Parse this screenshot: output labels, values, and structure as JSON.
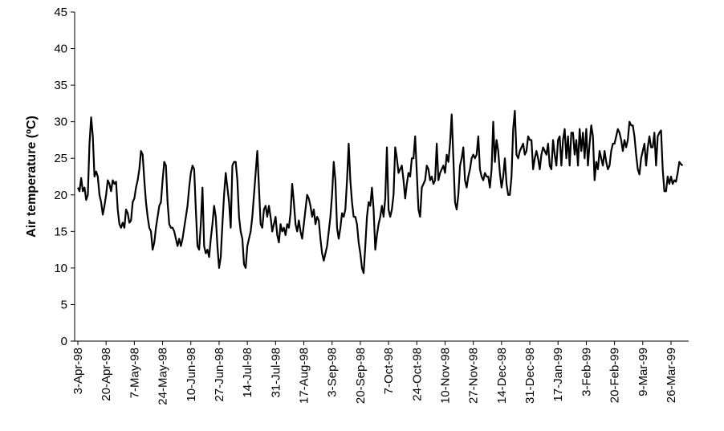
{
  "chart_data": {
    "type": "line",
    "y_label": "Air temperature (ºC)",
    "color": "#000000",
    "ylim": [
      0,
      45
    ],
    "yticks": [
      0,
      5,
      10,
      15,
      20,
      25,
      30,
      35,
      40,
      45
    ],
    "categories": [
      "3-Apr-98",
      null,
      null,
      null,
      null,
      null,
      null,
      null,
      null,
      null,
      null,
      null,
      null,
      null,
      null,
      null,
      null,
      "20-Apr-98",
      null,
      null,
      null,
      null,
      null,
      null,
      null,
      null,
      null,
      null,
      null,
      null,
      null,
      null,
      null,
      null,
      "7-May-98",
      null,
      null,
      null,
      null,
      null,
      null,
      null,
      null,
      null,
      null,
      null,
      null,
      null,
      null,
      null,
      null,
      "24-May-98",
      null,
      null,
      null,
      null,
      null,
      null,
      null,
      null,
      null,
      null,
      null,
      null,
      null,
      null,
      null,
      null,
      "10-Jun-98",
      null,
      null,
      null,
      null,
      null,
      null,
      null,
      null,
      null,
      null,
      null,
      null,
      null,
      null,
      null,
      null,
      "27-Jun-98",
      null,
      null,
      null,
      null,
      null,
      null,
      null,
      null,
      null,
      null,
      null,
      null,
      null,
      null,
      null,
      null,
      "14-Jul-98",
      null,
      null,
      null,
      null,
      null,
      null,
      null,
      null,
      null,
      null,
      null,
      null,
      null,
      null,
      null,
      null,
      "31-Jul-98",
      null,
      null,
      null,
      null,
      null,
      null,
      null,
      null,
      null,
      null,
      null,
      null,
      null,
      null,
      null,
      null,
      "17-Aug-98",
      null,
      null,
      null,
      null,
      null,
      null,
      null,
      null,
      null,
      null,
      null,
      null,
      null,
      null,
      null,
      null,
      "3-Sep-98",
      null,
      null,
      null,
      null,
      null,
      null,
      null,
      null,
      null,
      null,
      null,
      null,
      null,
      null,
      null,
      null,
      "20-Sep-98",
      null,
      null,
      null,
      null,
      null,
      null,
      null,
      null,
      null,
      null,
      null,
      null,
      null,
      null,
      null,
      null,
      "7-Oct-98",
      null,
      null,
      null,
      null,
      null,
      null,
      null,
      null,
      null,
      null,
      null,
      null,
      null,
      null,
      null,
      null,
      "24-Oct-98",
      null,
      null,
      null,
      null,
      null,
      null,
      null,
      null,
      null,
      null,
      null,
      null,
      null,
      null,
      null,
      null,
      "10-Nov-98",
      null,
      null,
      null,
      null,
      null,
      null,
      null,
      null,
      null,
      null,
      null,
      null,
      null,
      null,
      null,
      null,
      "27-Nov-98",
      null,
      null,
      null,
      null,
      null,
      null,
      null,
      null,
      null,
      null,
      null,
      null,
      null,
      null,
      null,
      null,
      "14-Dec-98",
      null,
      null,
      null,
      null,
      null,
      null,
      null,
      null,
      null,
      null,
      null,
      null,
      null,
      null,
      null,
      null,
      "31-Dec-98",
      null,
      null,
      null,
      null,
      null,
      null,
      null,
      null,
      null,
      null,
      null,
      null,
      null,
      null,
      null,
      null,
      "17-Jan-99",
      null,
      null,
      null,
      null,
      null,
      null,
      null,
      null,
      null,
      null,
      null,
      null,
      null,
      null,
      null,
      null,
      "3-Feb-99",
      null,
      null,
      null,
      null,
      null,
      null,
      null,
      null,
      null,
      null,
      null,
      null,
      null,
      null,
      null,
      null,
      "20-Feb-99",
      null,
      null,
      null,
      null,
      null,
      null,
      null,
      null,
      null,
      null,
      null,
      null,
      null,
      null,
      null,
      null,
      "9-Mar-99",
      null,
      null,
      null,
      null,
      null,
      null,
      null,
      null,
      null,
      null,
      null,
      null,
      null,
      null,
      null,
      null,
      "26-Mar-99",
      null,
      null,
      null,
      null,
      null,
      null,
      null
    ],
    "values": [
      21,
      20.5,
      22.3,
      20.5,
      21,
      19.3,
      20,
      27,
      30.6,
      28,
      22.5,
      23.2,
      22.5,
      20,
      19,
      17.3,
      18.5,
      20,
      22,
      21.5,
      20.5,
      22,
      21.5,
      21.8,
      18,
      16,
      15.5,
      16.2,
      15.5,
      18,
      17.5,
      16.2,
      16.5,
      19,
      19.5,
      21,
      22,
      23.5,
      26,
      25.5,
      22,
      19,
      17,
      15.5,
      15,
      12.5,
      13.5,
      15.5,
      17,
      18.5,
      19,
      22,
      24.5,
      24,
      19,
      16,
      15.5,
      15.5,
      15,
      14,
      13,
      14,
      13,
      14,
      15.5,
      17,
      18.5,
      21,
      23,
      24,
      23.5,
      18,
      13,
      12.5,
      16,
      21,
      13,
      12,
      12.5,
      11.5,
      14,
      16,
      18.5,
      17,
      13,
      10,
      11.5,
      16,
      20,
      23,
      21,
      19,
      15.5,
      24,
      24.5,
      24.5,
      22,
      17,
      15,
      14,
      10.5,
      10,
      13,
      14,
      15,
      17,
      20,
      23,
      26,
      21,
      16,
      15.5,
      18,
      18.5,
      17,
      18.5,
      17,
      15,
      16,
      17,
      14.5,
      13.5,
      16,
      15,
      15.5,
      14.5,
      16,
      15.5,
      17.5,
      21.5,
      19,
      16,
      15,
      16.5,
      15,
      14,
      16,
      18,
      20,
      19.5,
      18.5,
      17,
      18,
      16,
      17,
      16.5,
      14,
      12,
      11,
      12,
      13,
      15,
      17,
      20,
      24.5,
      22,
      15.5,
      14,
      15.5,
      17.5,
      17,
      18,
      22,
      27,
      22,
      19,
      17,
      17,
      16,
      13.5,
      12,
      10,
      9.3,
      13,
      17,
      19,
      18.5,
      21,
      18,
      12.5,
      14.5,
      16,
      17,
      18.5,
      17,
      19.5,
      26.5,
      18,
      17,
      18,
      20,
      26.5,
      25,
      23,
      23.5,
      24,
      22,
      19.5,
      21.5,
      23,
      22.5,
      25,
      25,
      28,
      23,
      18,
      17,
      21,
      21.5,
      22,
      24,
      23.5,
      22,
      22.5,
      21.5,
      22,
      27,
      22,
      23,
      23.5,
      24,
      23,
      25.5,
      24.5,
      27,
      31,
      25,
      19,
      18,
      20,
      24,
      25,
      26.5,
      22,
      21,
      22.5,
      23.5,
      25,
      25.5,
      25,
      25.5,
      28,
      23.5,
      22.5,
      22,
      23,
      22.5,
      22.5,
      21,
      23.5,
      30,
      24.5,
      27.5,
      26,
      23,
      21,
      22.5,
      25,
      21.5,
      20,
      20,
      22.5,
      29,
      31.5,
      25.5,
      25,
      26,
      26.5,
      27,
      25.5,
      26,
      28,
      27.5,
      27.5,
      23.5,
      25,
      26,
      25,
      23.5,
      25.5,
      26.5,
      26,
      25.5,
      27,
      24,
      23.5,
      27.5,
      25.5,
      24,
      27.5,
      28,
      24,
      27.5,
      29,
      25,
      28,
      24,
      28.5,
      28.5,
      25.5,
      27.5,
      24,
      29,
      26,
      28.5,
      25,
      29,
      24,
      27,
      29.5,
      28,
      22,
      24.5,
      23.5,
      26,
      25,
      24,
      26,
      24.5,
      23.5,
      24,
      26,
      27,
      27,
      28,
      29,
      28.5,
      27.5,
      26,
      27.5,
      26.5,
      27.5,
      30,
      29.5,
      29.5,
      28,
      25.5,
      23.5,
      22.8,
      25,
      26,
      27,
      24,
      26.5,
      28,
      26.5,
      26.5,
      28.5,
      24,
      28,
      28.5,
      28.8,
      23.5,
      20.5,
      20.5,
      22.5,
      21.5,
      22.5,
      21.5,
      22,
      21.8,
      23,
      24.5,
      24.2,
      24
    ]
  }
}
